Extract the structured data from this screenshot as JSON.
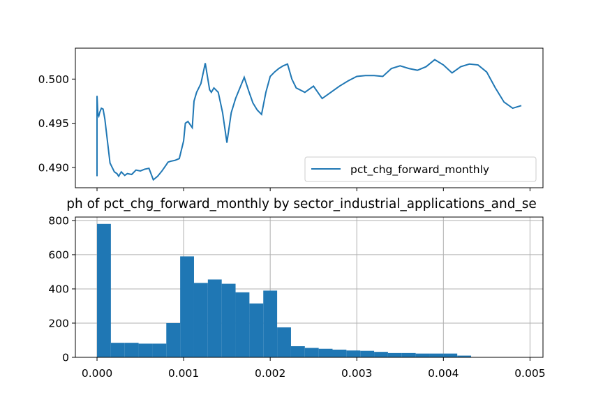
{
  "chart_data": [
    {
      "type": "line",
      "title": "",
      "xlabel": "",
      "ylabel": "",
      "xlim": [
        -0.00025,
        0.00515
      ],
      "ylim": [
        0.4877,
        0.5035
      ],
      "yticks": [
        "0.490",
        "0.495",
        "0.500"
      ],
      "xticks_shown_labels": false,
      "grid": false,
      "legend_position": "lower-right",
      "color": "#1f77b4",
      "series": [
        {
          "name": "pct_chg_forward_monthly",
          "x": [
            0.0,
            0.0,
            1e-05,
            2e-05,
            3e-05,
            5e-05,
            7e-05,
            9e-05,
            0.00012,
            0.00015,
            0.0002,
            0.00023,
            0.00025,
            0.00028,
            0.00032,
            0.00035,
            0.0004,
            0.00045,
            0.0005,
            0.00055,
            0.0006,
            0.00065,
            0.0007,
            0.00075,
            0.0008,
            0.00082,
            0.00085,
            0.0009,
            0.00095,
            0.001,
            0.00102,
            0.00105,
            0.0011,
            0.00112,
            0.00115,
            0.0012,
            0.00125,
            0.0013,
            0.00132,
            0.00135,
            0.0014,
            0.00145,
            0.0015,
            0.00155,
            0.0016,
            0.00165,
            0.0017,
            0.00175,
            0.0018,
            0.00185,
            0.0019,
            0.00195,
            0.002,
            0.00205,
            0.0021,
            0.00215,
            0.0022,
            0.00225,
            0.0023,
            0.0024,
            0.0025,
            0.0026,
            0.0027,
            0.0028,
            0.0029,
            0.003,
            0.0031,
            0.0032,
            0.0033,
            0.0034,
            0.0035,
            0.0036,
            0.0037,
            0.0038,
            0.0039,
            0.004,
            0.0041,
            0.0042,
            0.0043,
            0.0044,
            0.0045,
            0.0046,
            0.0047,
            0.0048,
            0.0049
          ],
          "y": [
            0.489,
            0.4981,
            0.496,
            0.4958,
            0.4962,
            0.4967,
            0.4966,
            0.4955,
            0.493,
            0.4905,
            0.4895,
            0.4893,
            0.489,
            0.4895,
            0.4891,
            0.4893,
            0.4892,
            0.4897,
            0.4896,
            0.4898,
            0.4899,
            0.4886,
            0.489,
            0.4896,
            0.4903,
            0.4906,
            0.4907,
            0.4908,
            0.491,
            0.493,
            0.495,
            0.4952,
            0.4945,
            0.4975,
            0.4985,
            0.4995,
            0.5018,
            0.4988,
            0.4985,
            0.499,
            0.4985,
            0.4962,
            0.4928,
            0.4962,
            0.4978,
            0.499,
            0.5002,
            0.4987,
            0.4973,
            0.4965,
            0.496,
            0.4985,
            0.5003,
            0.5008,
            0.5012,
            0.5015,
            0.5017,
            0.5,
            0.499,
            0.4985,
            0.4992,
            0.4978,
            0.4985,
            0.4992,
            0.4998,
            0.5003,
            0.5004,
            0.5004,
            0.5003,
            0.5012,
            0.5015,
            0.5012,
            0.501,
            0.5014,
            0.5022,
            0.5016,
            0.5007,
            0.5014,
            0.5017,
            0.5016,
            0.5008,
            0.499,
            0.4974,
            0.4967,
            0.497
          ]
        }
      ]
    },
    {
      "type": "bar",
      "title": "ph of pct_chg_forward_monthly by sector_industrial_applications_and_se",
      "xlabel": "",
      "ylabel": "",
      "xlim": [
        -0.00025,
        0.00515
      ],
      "ylim": [
        0,
        820
      ],
      "xticks": [
        "0.000",
        "0.001",
        "0.002",
        "0.003",
        "0.004",
        "0.005"
      ],
      "yticks": [
        "0",
        "200",
        "400",
        "600",
        "800"
      ],
      "grid": true,
      "color": "#1f77b4",
      "bin_width": 0.00016,
      "bin_start": 0.0,
      "values": [
        780,
        85,
        85,
        80,
        80,
        200,
        590,
        435,
        455,
        430,
        380,
        315,
        390,
        175,
        65,
        55,
        50,
        45,
        40,
        38,
        32,
        25,
        25,
        22,
        22,
        22,
        10,
        0,
        0,
        0,
        0
      ]
    }
  ]
}
